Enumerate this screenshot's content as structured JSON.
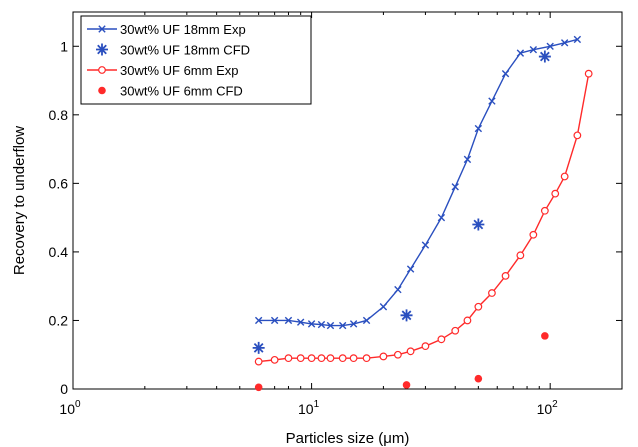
{
  "chart_data": {
    "type": "line",
    "xscale": "log",
    "xlim": [
      1,
      200
    ],
    "ylim": [
      0,
      1.1
    ],
    "xticks": [
      {
        "value": 1,
        "base": "10",
        "exp": "0"
      },
      {
        "value": 10,
        "base": "10",
        "exp": "1"
      },
      {
        "value": 100,
        "base": "10",
        "exp": "2"
      }
    ],
    "yticks": [
      {
        "value": 0,
        "label": "0"
      },
      {
        "value": 0.2,
        "label": "0.2"
      },
      {
        "value": 0.4,
        "label": "0.4"
      },
      {
        "value": 0.6,
        "label": "0.6"
      },
      {
        "value": 0.8,
        "label": "0.8"
      },
      {
        "value": 1.0,
        "label": "1"
      }
    ],
    "xlabel": "Particles size (μm)",
    "ylabel": "Recovery to underflow",
    "legend_position": "top-left",
    "series": [
      {
        "name": "30wt% UF 18mm Exp",
        "color": "#2a4fbf",
        "marker": "x",
        "line": true,
        "x": [
          6,
          7,
          8,
          9,
          10,
          11,
          12,
          13.5,
          15,
          17,
          20,
          23,
          26,
          30,
          35,
          40,
          45,
          50,
          57,
          65,
          75,
          85,
          100,
          115,
          130
        ],
        "y": [
          0.2,
          0.2,
          0.2,
          0.195,
          0.19,
          0.188,
          0.185,
          0.185,
          0.19,
          0.2,
          0.24,
          0.29,
          0.35,
          0.42,
          0.5,
          0.59,
          0.67,
          0.76,
          0.84,
          0.92,
          0.98,
          0.99,
          1.0,
          1.01,
          1.02
        ]
      },
      {
        "name": "30wt% UF 18mm CFD",
        "color": "#2a4fbf",
        "marker": "asterisk",
        "line": false,
        "x": [
          6,
          25,
          50,
          95
        ],
        "y": [
          0.12,
          0.215,
          0.48,
          0.97
        ]
      },
      {
        "name": "30wt% UF 6mm Exp",
        "color": "#ff2a2a",
        "marker": "circle-open",
        "line": true,
        "x": [
          6,
          7,
          8,
          9,
          10,
          11,
          12,
          13.5,
          15,
          17,
          20,
          23,
          26,
          30,
          35,
          40,
          45,
          50,
          57,
          65,
          75,
          85,
          95,
          105,
          115,
          130,
          145
        ],
        "y": [
          0.08,
          0.085,
          0.09,
          0.09,
          0.09,
          0.09,
          0.09,
          0.09,
          0.09,
          0.09,
          0.095,
          0.1,
          0.11,
          0.125,
          0.145,
          0.17,
          0.2,
          0.24,
          0.28,
          0.33,
          0.39,
          0.45,
          0.52,
          0.57,
          0.62,
          0.74,
          0.92
        ]
      },
      {
        "name": "30wt% UF 6mm CFD",
        "color": "#ff2a2a",
        "marker": "dot",
        "line": false,
        "x": [
          6,
          25,
          50,
          95
        ],
        "y": [
          0.005,
          0.012,
          0.03,
          0.155
        ]
      }
    ]
  }
}
